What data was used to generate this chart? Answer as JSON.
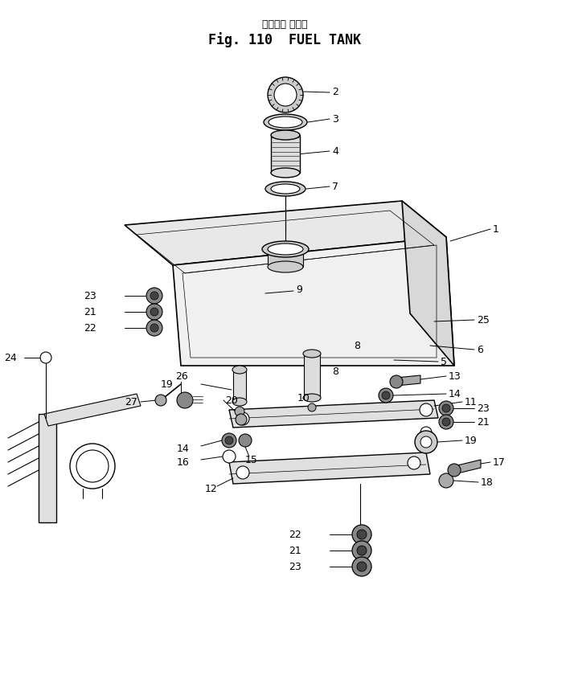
{
  "title_japanese": "フェエル タンク",
  "title_english": "Fig. 110  FUEL TANK",
  "bg_color": "#ffffff",
  "line_color": "#000000",
  "fig_width": 7.09,
  "fig_height": 8.71,
  "dpi": 100
}
